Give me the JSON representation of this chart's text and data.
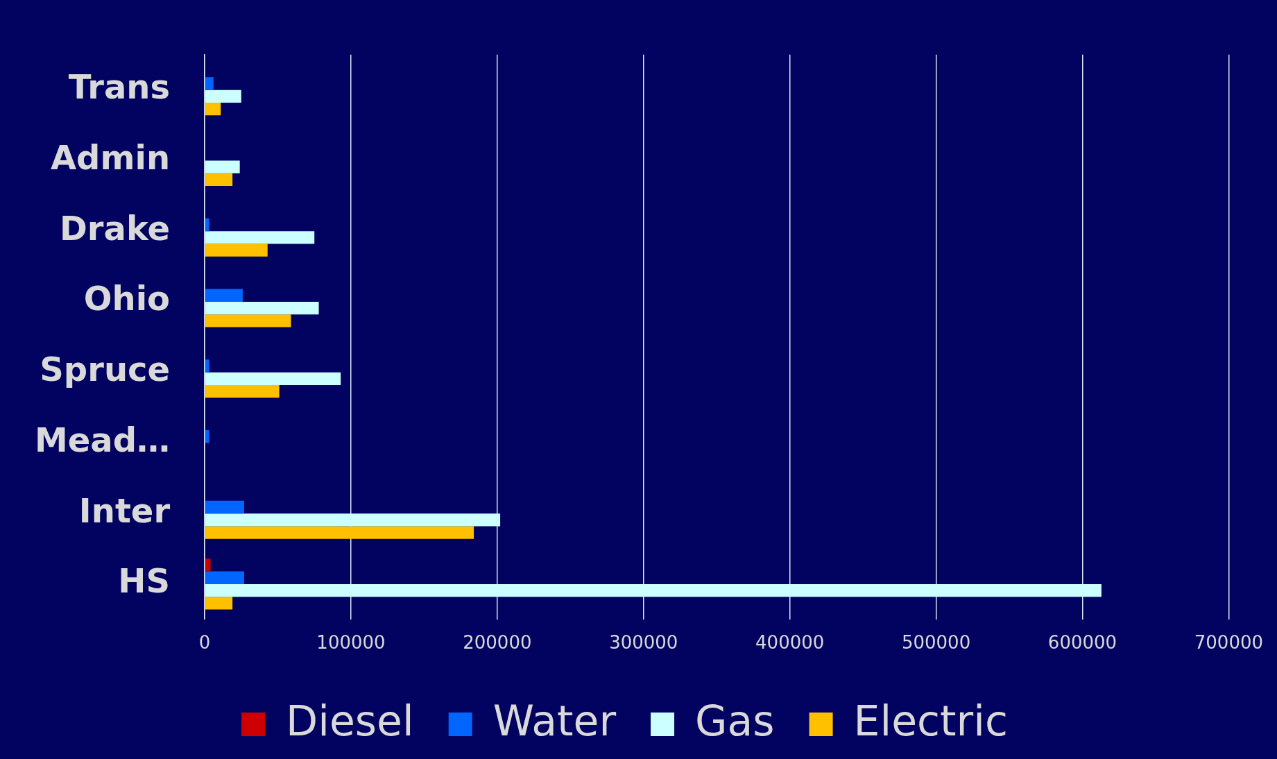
{
  "chart_data": {
    "type": "bar",
    "orientation": "horizontal",
    "categories": [
      "Trans",
      "Admin",
      "Drake",
      "Ohio",
      "Spruce",
      "Mead…",
      "Inter",
      "HS"
    ],
    "series": [
      {
        "name": "Diesel",
        "color": "#cc0000",
        "values": [
          null,
          null,
          null,
          null,
          null,
          null,
          null,
          4000
        ]
      },
      {
        "name": "Water",
        "color": "#0066ff",
        "values": [
          6000,
          null,
          3000,
          26000,
          3000,
          3000,
          27000,
          27000
        ]
      },
      {
        "name": "Gas",
        "color": "#ccffff",
        "values": [
          25000,
          24000,
          75000,
          78000,
          93000,
          null,
          202000,
          613000
        ]
      },
      {
        "name": "Electric",
        "color": "#ffc000",
        "values": [
          11000,
          19000,
          43000,
          59000,
          51000,
          null,
          184000,
          19000
        ]
      }
    ],
    "xlim": [
      0,
      700000
    ],
    "xticks": [
      0,
      100000,
      200000,
      300000,
      400000,
      500000,
      600000,
      700000
    ],
    "grid": "x",
    "legend": "bottom"
  }
}
